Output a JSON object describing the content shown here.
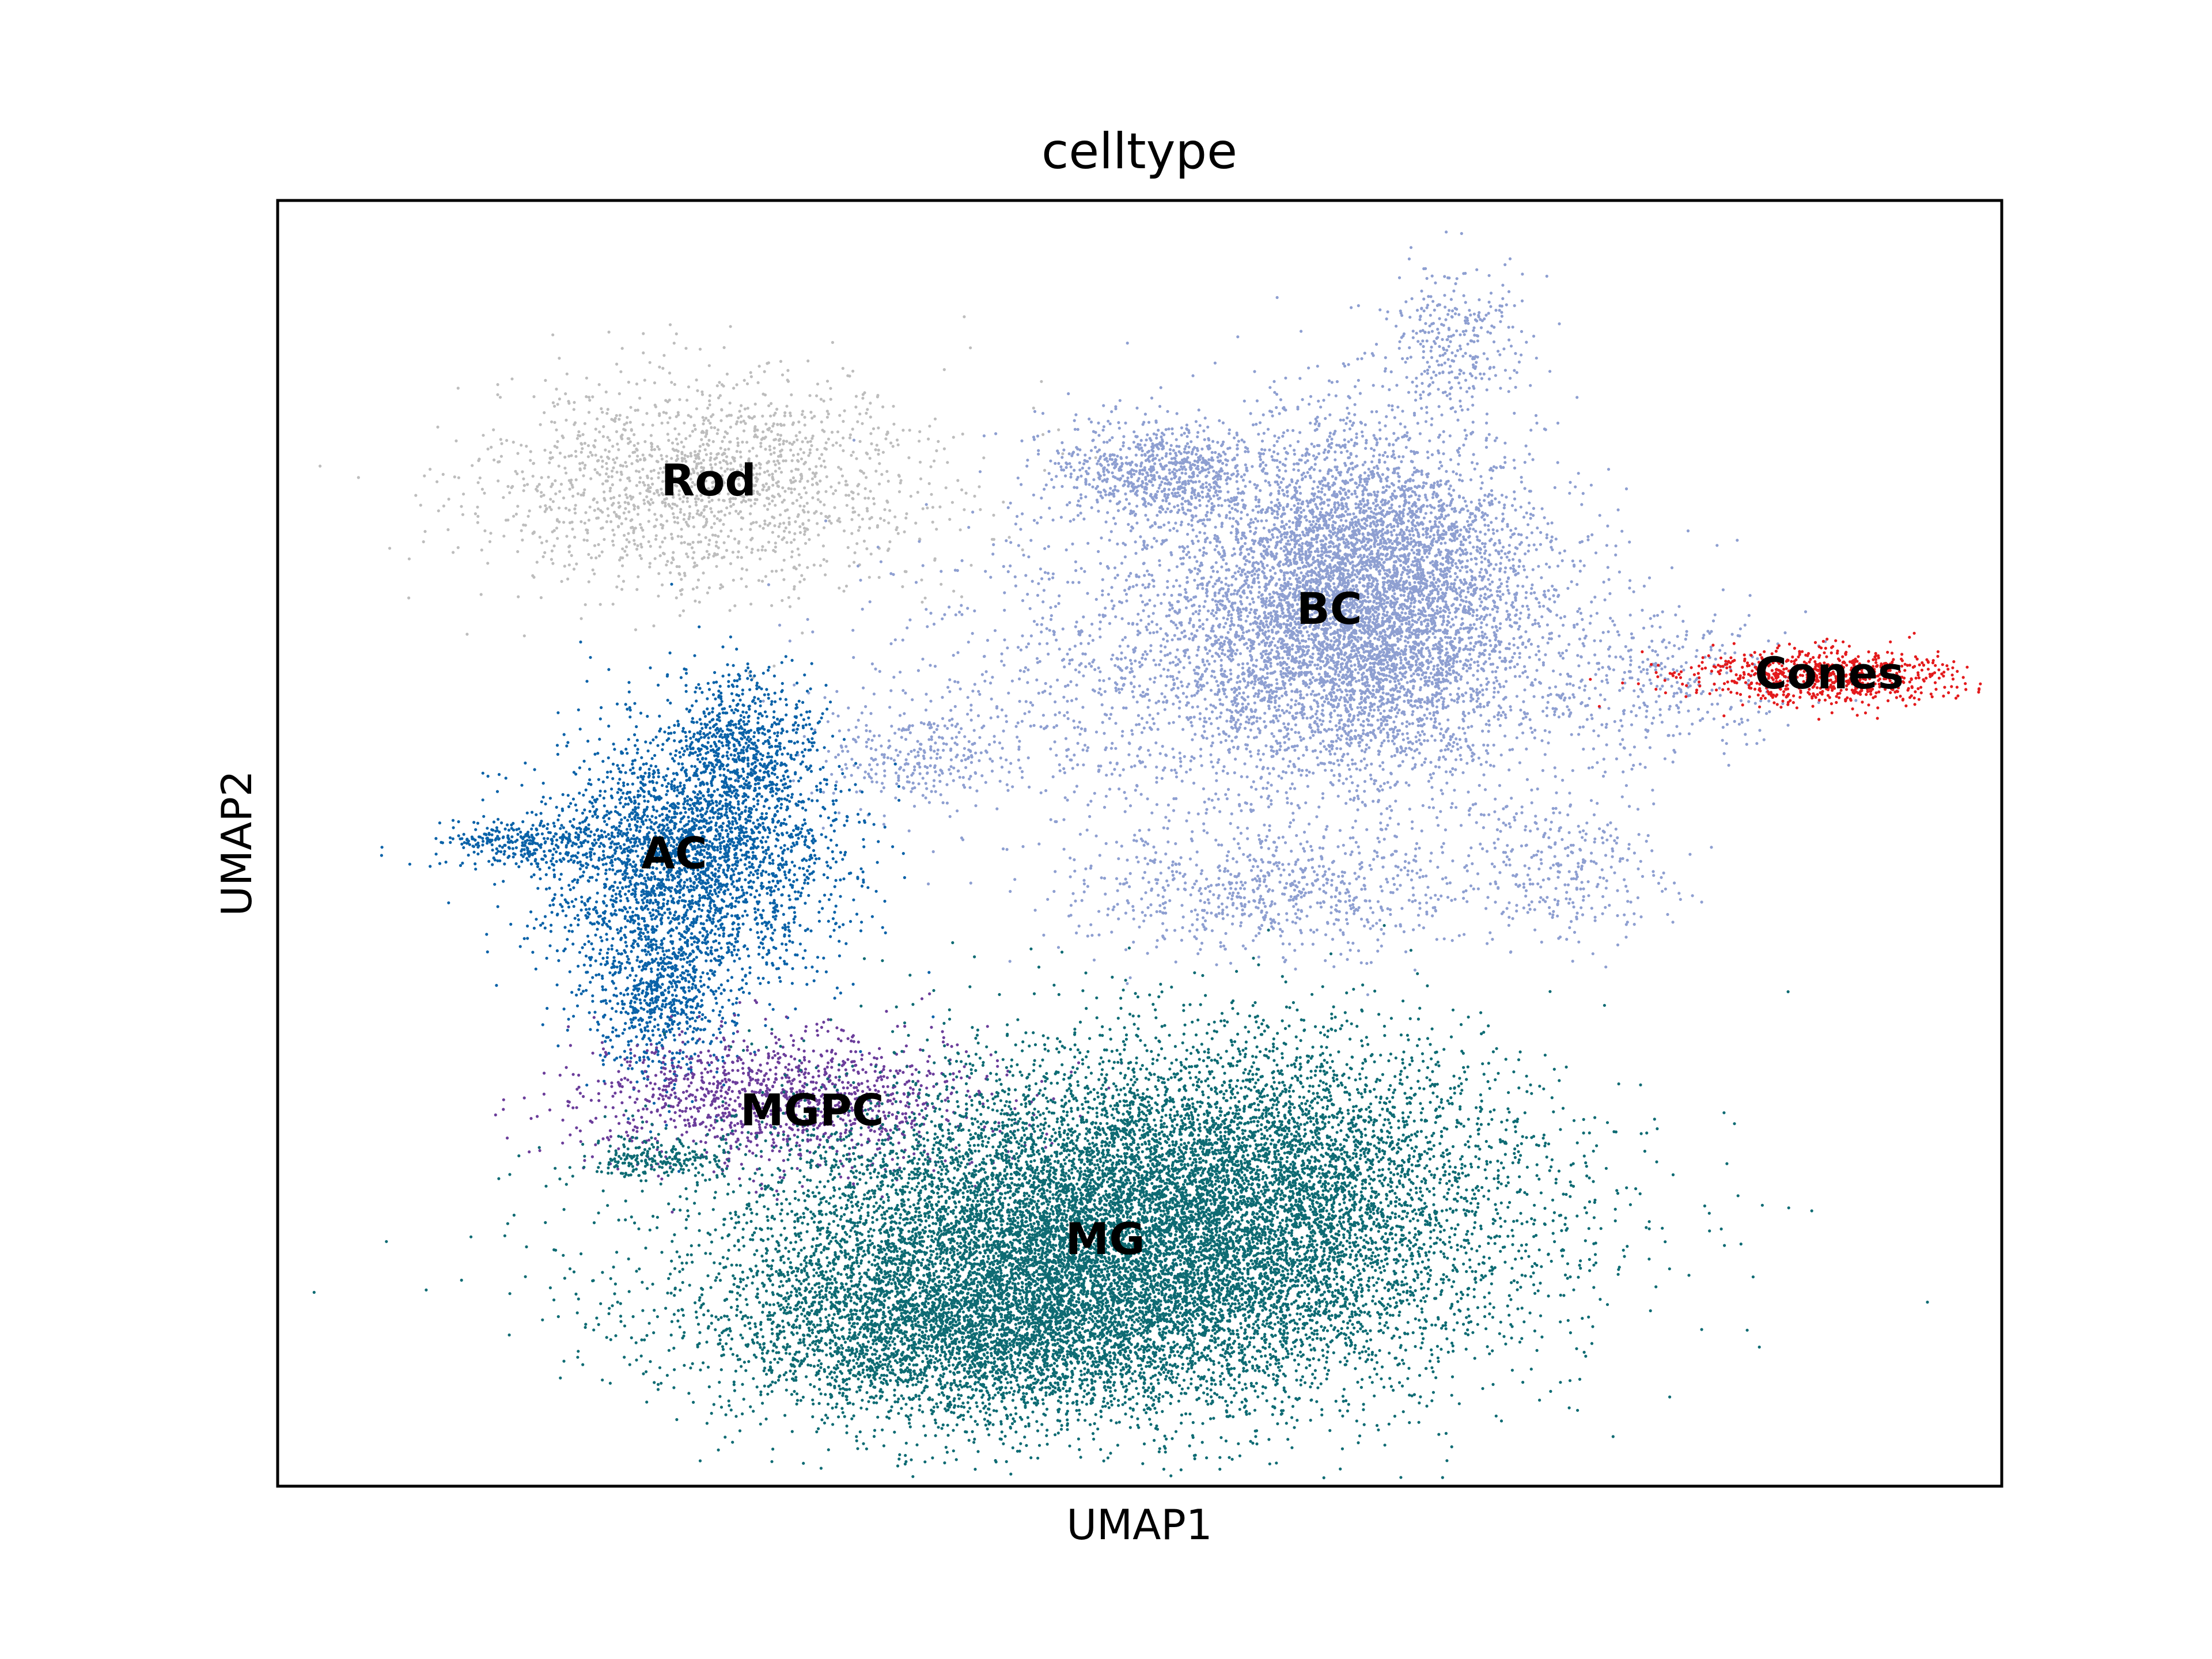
{
  "chart_data": {
    "type": "scatter",
    "title": "celltype",
    "xlabel": "UMAP1",
    "ylabel": "UMAP2",
    "xlim": [
      0,
      100
    ],
    "ylim": [
      0,
      100
    ],
    "grid": false,
    "legend": "on data",
    "series": [
      {
        "name": "Rod",
        "color": "#bdbdbd",
        "label_pos": [
          25,
          78
        ],
        "clusters": [
          {
            "cx": 25,
            "cy": 78,
            "sx": 6.5,
            "sy": 4.2,
            "n": 1700,
            "seed": 11
          }
        ]
      },
      {
        "name": "BC",
        "color": "#8e9fd1",
        "label_pos": [
          61,
          68
        ],
        "clusters": [
          {
            "cx": 63,
            "cy": 69,
            "sx": 5.0,
            "sy": 6.5,
            "n": 6500,
            "seed": 21
          },
          {
            "cx": 51,
            "cy": 79,
            "sx": 3.0,
            "sy": 2.0,
            "n": 800,
            "seed": 22
          },
          {
            "cx": 54,
            "cy": 63,
            "sx": 9.0,
            "sy": 7.0,
            "n": 1800,
            "seed": 23
          },
          {
            "cx": 68,
            "cy": 89,
            "sx": 2.0,
            "sy": 3.0,
            "n": 300,
            "seed": 24
          },
          {
            "cx": 58,
            "cy": 46,
            "sx": 6.0,
            "sy": 2.5,
            "n": 700,
            "seed": 25
          },
          {
            "cx": 37,
            "cy": 57,
            "sx": 3.0,
            "sy": 2.0,
            "n": 280,
            "seed": 26
          },
          {
            "cx": 80,
            "cy": 62,
            "sx": 4.0,
            "sy": 3.0,
            "n": 350,
            "seed": 27
          },
          {
            "cx": 75,
            "cy": 48,
            "sx": 3.0,
            "sy": 3.0,
            "n": 300,
            "seed": 28
          }
        ]
      },
      {
        "name": "Cones",
        "color": "#e31a1c",
        "label_pos": [
          90,
          63
        ],
        "clusters": [
          {
            "cx": 90,
            "cy": 63,
            "sx": 4.2,
            "sy": 1.1,
            "n": 800,
            "seed": 31
          }
        ]
      },
      {
        "name": "AC",
        "color": "#0a62a8",
        "label_pos": [
          23,
          49
        ],
        "clusters": [
          {
            "cx": 24,
            "cy": 49,
            "sx": 4.2,
            "sy": 5.0,
            "n": 3000,
            "seed": 41
          },
          {
            "cx": 27,
            "cy": 58,
            "sx": 2.0,
            "sy": 3.0,
            "n": 600,
            "seed": 42
          },
          {
            "cx": 22,
            "cy": 38,
            "sx": 2.0,
            "sy": 3.5,
            "n": 700,
            "seed": 43
          },
          {
            "cx": 14,
            "cy": 50,
            "sx": 2.5,
            "sy": 0.9,
            "n": 300,
            "seed": 44
          }
        ]
      },
      {
        "name": "MGPC",
        "color": "#6b3d9a",
        "label_pos": [
          31,
          29
        ],
        "clusters": [
          {
            "cx": 29,
            "cy": 30,
            "sx": 6.0,
            "sy": 2.6,
            "n": 1300,
            "seed": 51
          }
        ]
      },
      {
        "name": "MG",
        "color": "#0e6b73",
        "label_pos": [
          48,
          19
        ],
        "clusters": [
          {
            "cx": 48,
            "cy": 18,
            "sx": 11.0,
            "sy": 6.0,
            "n": 11000,
            "seed": 61
          },
          {
            "cx": 55,
            "cy": 25,
            "sx": 8.5,
            "sy": 5.5,
            "n": 4000,
            "seed": 62
          },
          {
            "cx": 40,
            "cy": 12,
            "sx": 7.0,
            "sy": 3.5,
            "n": 3000,
            "seed": 63
          },
          {
            "cx": 22,
            "cy": 25.5,
            "sx": 2.2,
            "sy": 0.8,
            "n": 220,
            "seed": 64
          }
        ]
      }
    ]
  }
}
